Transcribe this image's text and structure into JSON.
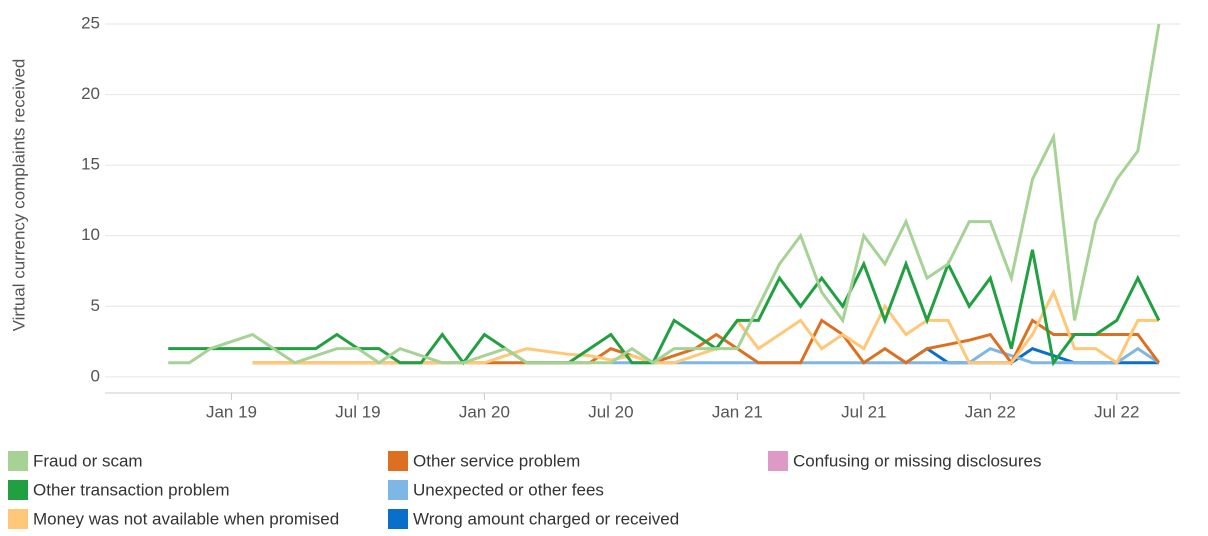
{
  "chart_data": {
    "type": "line",
    "y_label": "Virtual currency complaints received",
    "x": [
      "2018-10",
      "2018-11",
      "2018-12",
      "2019-01",
      "2019-02",
      "2019-03",
      "2019-04",
      "2019-05",
      "2019-06",
      "2019-07",
      "2019-08",
      "2019-09",
      "2019-10",
      "2019-11",
      "2019-12",
      "2020-01",
      "2020-02",
      "2020-03",
      "2020-04",
      "2020-05",
      "2020-06",
      "2020-07",
      "2020-08",
      "2020-09",
      "2020-10",
      "2020-11",
      "2020-12",
      "2021-01",
      "2021-02",
      "2021-03",
      "2021-04",
      "2021-05",
      "2021-06",
      "2021-07",
      "2021-08",
      "2021-09",
      "2021-10",
      "2021-11",
      "2021-12",
      "2022-01",
      "2022-02",
      "2022-03",
      "2022-04",
      "2022-05",
      "2022-06",
      "2022-07",
      "2022-08",
      "2022-09"
    ],
    "series": [
      {
        "name": "Fraud or scam",
        "color": "#a6d395",
        "values": [
          1,
          1,
          2,
          2.5,
          3,
          2,
          1,
          1.5,
          2,
          2,
          1,
          2,
          1.5,
          1,
          1,
          1.5,
          2,
          1,
          1,
          1,
          1,
          1,
          2,
          1,
          2,
          2,
          2,
          2,
          5,
          8,
          10,
          6,
          4,
          10,
          8,
          11,
          7,
          8,
          11,
          11,
          7,
          14,
          17,
          4,
          11,
          14,
          16,
          25
        ]
      },
      {
        "name": "Other transaction problem",
        "color": "#20a040",
        "values": [
          2,
          2,
          2,
          2,
          2,
          2,
          2,
          2,
          3,
          2,
          2,
          1,
          1,
          3,
          1,
          3,
          2,
          1,
          1,
          1,
          2,
          3,
          1,
          1,
          4,
          3,
          2,
          4,
          4,
          7,
          5,
          7,
          5,
          8,
          4,
          8,
          4,
          8,
          5,
          7,
          2,
          9,
          1,
          3,
          3,
          4,
          7,
          4
        ]
      },
      {
        "name": "Money was not available when promised",
        "color": "#ffc878",
        "values": [
          null,
          null,
          null,
          null,
          1,
          1,
          1,
          1,
          1,
          1,
          1,
          1,
          1,
          1,
          1,
          1,
          1.5,
          2,
          1.8,
          1.6,
          1.5,
          1.2,
          1.5,
          1,
          1,
          1.5,
          2,
          4,
          2,
          3,
          4,
          2,
          3,
          2,
          5,
          3,
          4,
          4,
          1,
          1,
          1,
          3,
          6,
          2,
          2,
          1,
          4,
          4
        ]
      },
      {
        "name": "Other service problem",
        "color": "#dc7020",
        "values": [
          null,
          null,
          null,
          null,
          1,
          1,
          1,
          1,
          1,
          1,
          1,
          1,
          1,
          1,
          1,
          1,
          1,
          1,
          1,
          1,
          1,
          2,
          1.5,
          1,
          1.5,
          2,
          3,
          2,
          1,
          1,
          1,
          4,
          3,
          1,
          2,
          1,
          2,
          2.3,
          2.6,
          3,
          1,
          4,
          3,
          3,
          3,
          3,
          3,
          1
        ]
      },
      {
        "name": "Unexpected or other fees",
        "color": "#7eb6e6",
        "values": [
          null,
          null,
          null,
          null,
          null,
          null,
          null,
          null,
          null,
          null,
          null,
          null,
          null,
          null,
          null,
          null,
          null,
          null,
          null,
          null,
          null,
          1,
          1,
          1,
          1,
          1,
          1,
          1,
          1,
          1,
          1,
          1,
          1,
          1,
          1,
          1,
          1,
          1,
          1,
          2,
          1.5,
          1,
          1,
          1,
          1,
          1,
          2,
          1
        ]
      },
      {
        "name": "Wrong amount charged or received",
        "color": "#0a6ecc",
        "values": [
          null,
          null,
          null,
          null,
          null,
          null,
          null,
          null,
          null,
          null,
          null,
          null,
          null,
          null,
          null,
          null,
          null,
          null,
          null,
          null,
          null,
          null,
          null,
          null,
          null,
          null,
          null,
          null,
          null,
          null,
          null,
          null,
          null,
          null,
          null,
          1,
          2,
          1,
          1,
          1,
          1,
          2,
          1.5,
          1,
          1,
          1,
          1,
          1
        ]
      },
      {
        "name": "Confusing or missing disclosures",
        "color": "#dc9ac4",
        "values": [
          null,
          null,
          null,
          null,
          null,
          null,
          null,
          null,
          null,
          null,
          null,
          null,
          null,
          null,
          null,
          null,
          null,
          null,
          null,
          null,
          null,
          null,
          null,
          null,
          null,
          null,
          null,
          null,
          null,
          null,
          null,
          null,
          null,
          null,
          null,
          null,
          null,
          null,
          null,
          null,
          null,
          null,
          null,
          null,
          null,
          null,
          null,
          null
        ]
      }
    ],
    "xlim": [
      "2018-07",
      "2022-10"
    ],
    "xticks": [
      {
        "value": "2019-01",
        "label": "Jan 19"
      },
      {
        "value": "2019-07",
        "label": "Jul 19"
      },
      {
        "value": "2020-01",
        "label": "Jan 20"
      },
      {
        "value": "2020-07",
        "label": "Jul 20"
      },
      {
        "value": "2021-01",
        "label": "Jan 21"
      },
      {
        "value": "2021-07",
        "label": "Jul 21"
      },
      {
        "value": "2022-01",
        "label": "Jan 22"
      },
      {
        "value": "2022-07",
        "label": "Jul 22"
      }
    ],
    "ylim": [
      -1,
      25
    ],
    "yticks": [
      0,
      5,
      10,
      15,
      20,
      25
    ],
    "grid": true
  }
}
